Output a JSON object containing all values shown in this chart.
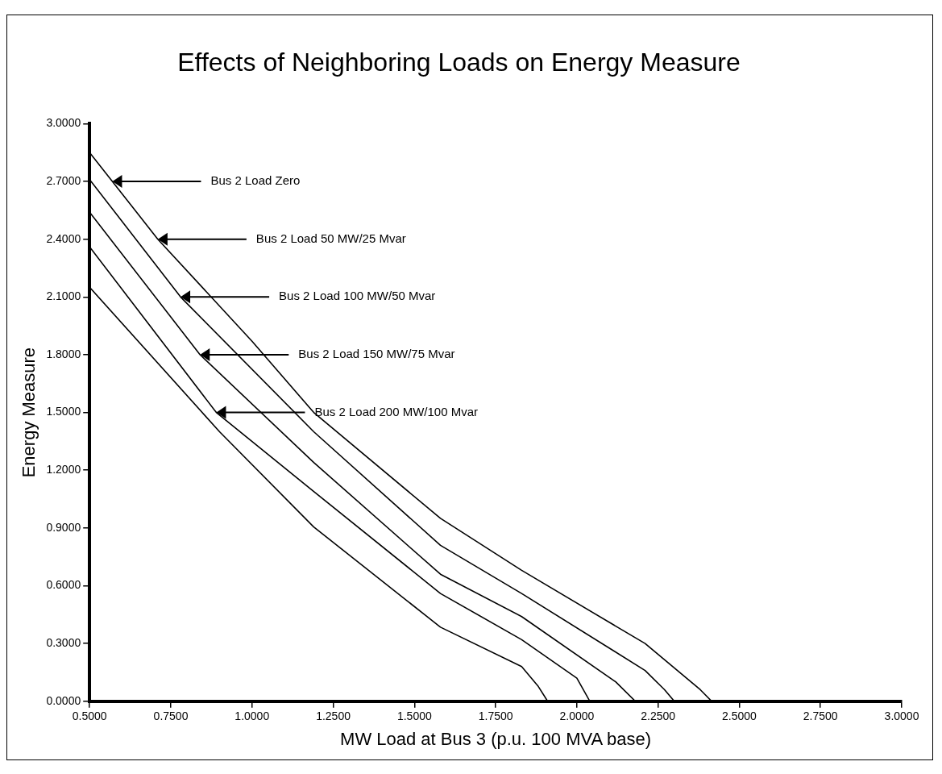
{
  "chart_data": {
    "type": "line",
    "title": "Effects of Neighboring Loads on Energy Measure",
    "xlabel": "MW Load at Bus 3 (p.u. 100 MVA base)",
    "ylabel": "Energy Measure",
    "xlim": [
      0.5,
      3.0
    ],
    "ylim": [
      0,
      3.0
    ],
    "xticks": [
      {
        "value": 0.5,
        "label": "0.5000"
      },
      {
        "value": 0.75,
        "label": "0.7500"
      },
      {
        "value": 1.0,
        "label": "1.0000"
      },
      {
        "value": 1.25,
        "label": "1.2500"
      },
      {
        "value": 1.5,
        "label": "1.5000"
      },
      {
        "value": 1.75,
        "label": "1.7500"
      },
      {
        "value": 2.0,
        "label": "2.0000"
      },
      {
        "value": 2.25,
        "label": "2.2500"
      },
      {
        "value": 2.5,
        "label": "2.5000"
      },
      {
        "value": 2.75,
        "label": "2.7500"
      },
      {
        "value": 3.0,
        "label": "3.0000"
      }
    ],
    "yticks": [
      {
        "value": 0,
        "label": "0.0000"
      },
      {
        "value": 0.3,
        "label": "0.3000"
      },
      {
        "value": 0.6,
        "label": "0.6000"
      },
      {
        "value": 0.9,
        "label": "0.9000"
      },
      {
        "value": 1.2,
        "label": "1.2000"
      },
      {
        "value": 1.5,
        "label": "1.5000"
      },
      {
        "value": 1.8,
        "label": "1.8000"
      },
      {
        "value": 2.1,
        "label": "2.1000"
      },
      {
        "value": 2.4,
        "label": "2.4000"
      },
      {
        "value": 2.7,
        "label": "2.7000"
      },
      {
        "value": 3.0,
        "label": "3.0000"
      }
    ],
    "series": [
      {
        "color": "#000000",
        "x": [
          0.5,
          0.71,
          1.0,
          1.19,
          1.58,
          1.83,
          2.21,
          2.38,
          2.415
        ],
        "values": [
          2.85,
          2.4,
          1.87,
          1.5,
          0.95,
          0.68,
          0.3,
          0.06,
          0
        ]
      },
      {
        "color": "#000000",
        "x": [
          0.5,
          0.78,
          1.19,
          1.58,
          1.83,
          2.21,
          2.27,
          2.3
        ],
        "values": [
          2.71,
          2.1,
          1.4,
          0.81,
          0.56,
          0.16,
          0.06,
          0
        ]
      },
      {
        "color": "#000000",
        "x": [
          0.5,
          0.84,
          1.19,
          1.58,
          1.83,
          2.12,
          2.18
        ],
        "values": [
          2.54,
          1.8,
          1.24,
          0.66,
          0.44,
          0.1,
          0
        ]
      },
      {
        "color": "#000000",
        "x": [
          0.5,
          0.89,
          1.19,
          1.58,
          1.83,
          2.0,
          2.04
        ],
        "values": [
          2.36,
          1.5,
          1.09,
          0.56,
          0.32,
          0.12,
          0
        ]
      },
      {
        "color": "#000000",
        "x": [
          0.5,
          0.9,
          1.19,
          1.58,
          1.83,
          1.88,
          1.91
        ],
        "values": [
          2.15,
          1.4,
          0.905,
          0.385,
          0.18,
          0.08,
          0
        ]
      }
    ],
    "annotations": [
      {
        "text": "Bus 2 Load Zero",
        "x": 0.57,
        "y": 2.7
      },
      {
        "text": "Bus 2 Load 50 MW/25 Mvar",
        "x": 0.71,
        "y": 2.4
      },
      {
        "text": "Bus 2 Load 100 MW/50 Mvar",
        "x": 0.78,
        "y": 2.1
      },
      {
        "text": "Bus 2 Load 150 MW/75 Mvar",
        "x": 0.84,
        "y": 1.8
      },
      {
        "text": "Bus 2 Load 200 MW/100 Mvar",
        "x": 0.89,
        "y": 1.5
      }
    ],
    "grid": false,
    "legend": false,
    "line_style": "solid"
  }
}
